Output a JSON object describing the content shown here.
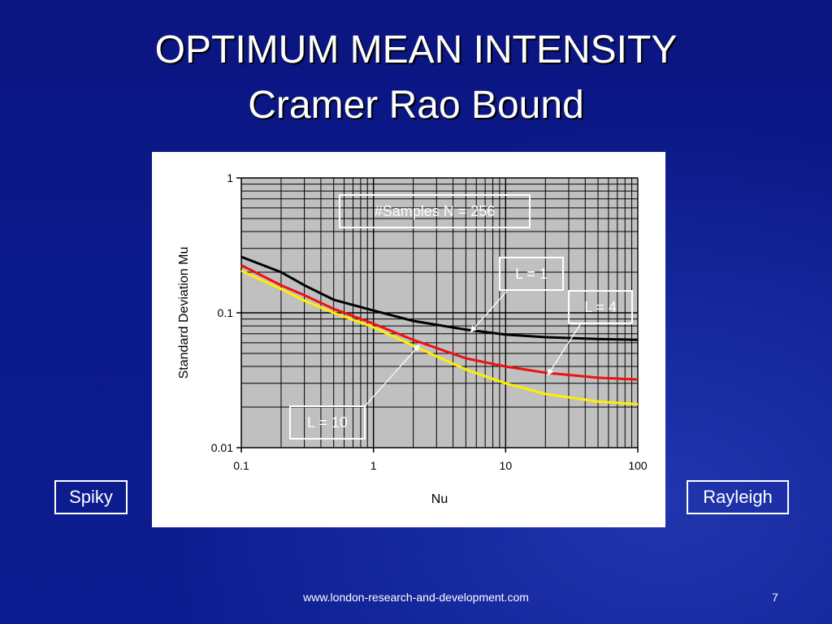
{
  "slide": {
    "title_line1": "OPTIMUM MEAN INTENSITY",
    "title_line2": "Cramer Rao Bound",
    "left_label": "Spiky",
    "right_label": "Rayleigh",
    "footer": "www.london-research-and-development.com",
    "page_number": "7"
  },
  "chart_data": {
    "type": "line",
    "x_scale": "log",
    "y_scale": "log",
    "xlim": [
      0.1,
      100
    ],
    "ylim": [
      0.01,
      1
    ],
    "xlabel": "Nu",
    "ylabel": "Standard Deviation Mu",
    "x_ticks": [
      "0.1",
      "1",
      "10",
      "100"
    ],
    "y_ticks": [
      "0.01",
      "0.1",
      "1"
    ],
    "grid": true,
    "plot_background": "#c0c0c0",
    "series": [
      {
        "name": "L = 1",
        "color": "#000000",
        "points": [
          [
            0.1,
            0.26
          ],
          [
            0.2,
            0.2
          ],
          [
            0.3,
            0.16
          ],
          [
            0.5,
            0.125
          ],
          [
            1,
            0.104
          ],
          [
            2,
            0.087
          ],
          [
            5,
            0.075
          ],
          [
            10,
            0.069
          ],
          [
            20,
            0.066
          ],
          [
            50,
            0.064
          ],
          [
            100,
            0.063
          ]
        ]
      },
      {
        "name": "L = 4",
        "color": "#ee1111",
        "points": [
          [
            0.1,
            0.225
          ],
          [
            0.2,
            0.16
          ],
          [
            0.3,
            0.135
          ],
          [
            0.5,
            0.107
          ],
          [
            1,
            0.083
          ],
          [
            2,
            0.063
          ],
          [
            5,
            0.046
          ],
          [
            10,
            0.04
          ],
          [
            20,
            0.036
          ],
          [
            50,
            0.033
          ],
          [
            100,
            0.032
          ]
        ]
      },
      {
        "name": "L = 10",
        "color": "#ffee00",
        "points": [
          [
            0.1,
            0.205
          ],
          [
            0.2,
            0.15
          ],
          [
            0.3,
            0.123
          ],
          [
            0.5,
            0.1
          ],
          [
            1,
            0.078
          ],
          [
            2,
            0.057
          ],
          [
            5,
            0.038
          ],
          [
            10,
            0.03
          ],
          [
            20,
            0.025
          ],
          [
            50,
            0.022
          ],
          [
            100,
            0.021
          ]
        ]
      }
    ],
    "annotations": [
      {
        "text": "#Samples N = 256",
        "kind": "boxed"
      },
      {
        "text": "L = 1",
        "kind": "callout",
        "target": [
          5.5,
          0.073
        ]
      },
      {
        "text": "L = 4",
        "kind": "callout",
        "target": [
          21,
          0.035
        ]
      },
      {
        "text": "L = 10",
        "kind": "callout",
        "target": [
          2.2,
          0.057
        ]
      }
    ]
  }
}
